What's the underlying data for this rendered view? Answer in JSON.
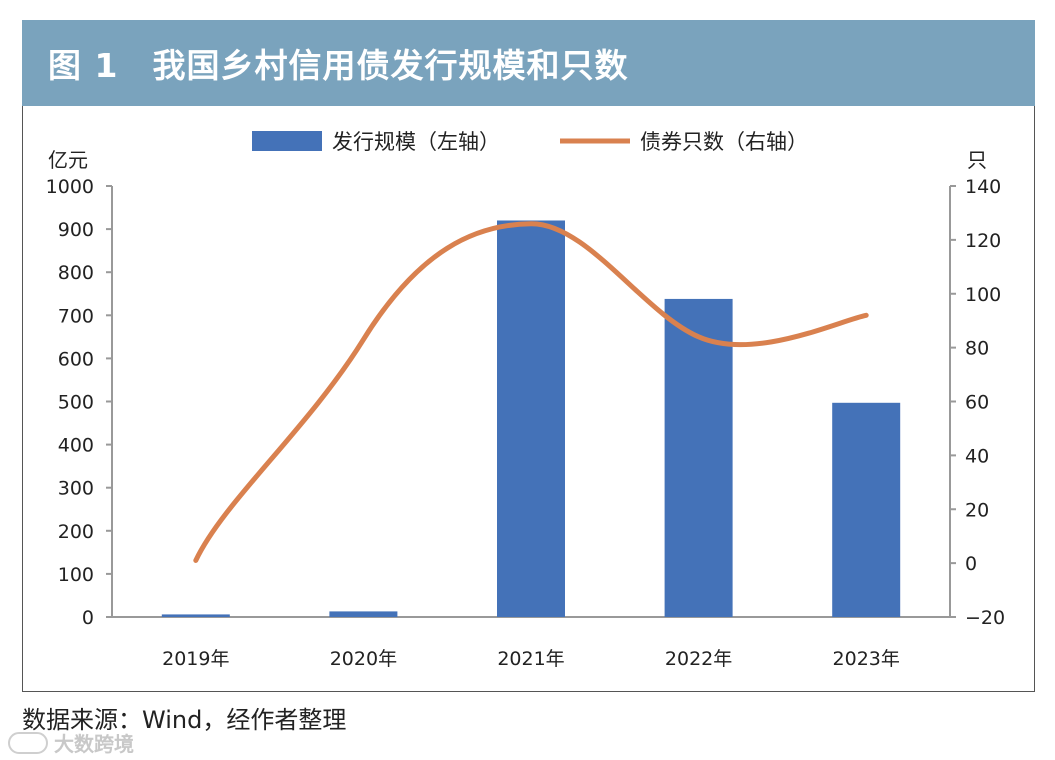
{
  "figure": {
    "title": "图 1　我国乡村信用债发行规模和只数"
  },
  "source": "数据来源：Wind，经作者整理",
  "watermark": "大数跨境",
  "chart_data": {
    "type": "bar+line",
    "categories": [
      "2019年",
      "2020年",
      "2021年",
      "2022年",
      "2023年"
    ],
    "series": [
      {
        "name": "发行规模（左轴）",
        "type": "bar",
        "axis": "left",
        "color": "#4472b8",
        "values": [
          6,
          13,
          920,
          738,
          497
        ]
      },
      {
        "name": "债券只数（右轴）",
        "type": "line",
        "axis": "right",
        "color": "#d9814f",
        "values": [
          1,
          83,
          126,
          84,
          92
        ]
      }
    ],
    "left_axis": {
      "unit": "亿元",
      "min": 0,
      "max": 1000,
      "step": 100,
      "ticks": [
        "0",
        "100",
        "200",
        "300",
        "400",
        "500",
        "600",
        "700",
        "800",
        "900",
        "1000"
      ]
    },
    "right_axis": {
      "unit": "只",
      "min": -20,
      "max": 140,
      "step": 20,
      "ticks": [
        "−20",
        "0",
        "20",
        "40",
        "60",
        "80",
        "100",
        "120",
        "140"
      ]
    },
    "legend_position": "top-center"
  }
}
